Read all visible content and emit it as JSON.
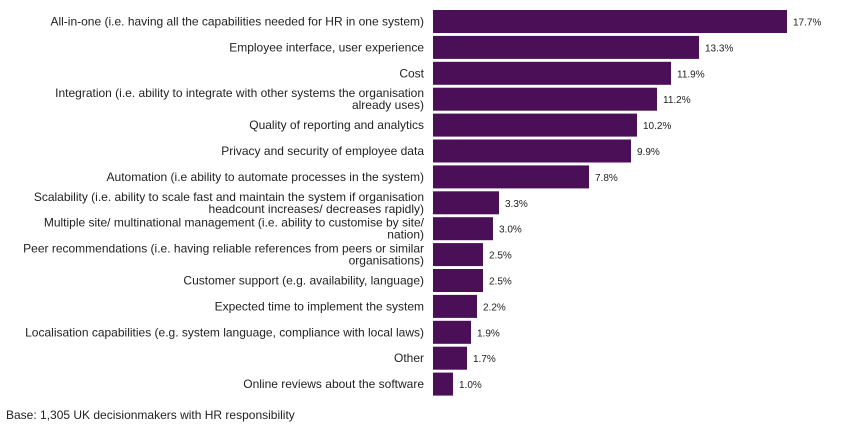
{
  "chart_data": {
    "type": "bar",
    "orientation": "horizontal",
    "bar_color": "#4a0f56",
    "value_suffix": "%",
    "categories": [
      [
        "All-in-one (i.e. having all the capabilities needed for HR in one system)"
      ],
      [
        "Employee interface, user experience"
      ],
      [
        "Cost"
      ],
      [
        "Integration (i.e. ability to integrate with other systems the organisation",
        "already uses)"
      ],
      [
        "Quality of reporting and analytics"
      ],
      [
        "Privacy and security of employee data"
      ],
      [
        "Automation (i.e ability to automate processes in the system)"
      ],
      [
        "Scalability (i.e. ability to scale fast and maintain the system if organisation",
        "headcount increases/ decreases rapidly)"
      ],
      [
        "Multiple site/ multinational management (i.e. ability to customise by site/",
        "nation)"
      ],
      [
        "Peer recommendations (i.e. having reliable references from peers or similar",
        "organisations)"
      ],
      [
        "Customer support (e.g. availability, language)"
      ],
      [
        "Expected time to implement the system"
      ],
      [
        "Localisation capabilities (e.g. system language, compliance with local laws)"
      ],
      [
        "Other"
      ],
      [
        "Online reviews about the software"
      ]
    ],
    "values": [
      17.7,
      13.3,
      11.9,
      11.2,
      10.2,
      9.9,
      7.8,
      3.3,
      3.0,
      2.5,
      2.5,
      2.2,
      1.9,
      1.7,
      1.0
    ],
    "value_labels": [
      "17.7%",
      "13.3%",
      "11.9%",
      "11.2%",
      "10.2%",
      "9.9%",
      "7.8%",
      "3.3%",
      "3.0%",
      "2.5%",
      "2.5%",
      "2.2%",
      "1.9%",
      "1.7%",
      "1.0%"
    ],
    "xlim": [
      0,
      20
    ],
    "grid": false,
    "legend": "none"
  },
  "footnote": "Base: 1,305 UK decisionmakers with HR responsibility"
}
